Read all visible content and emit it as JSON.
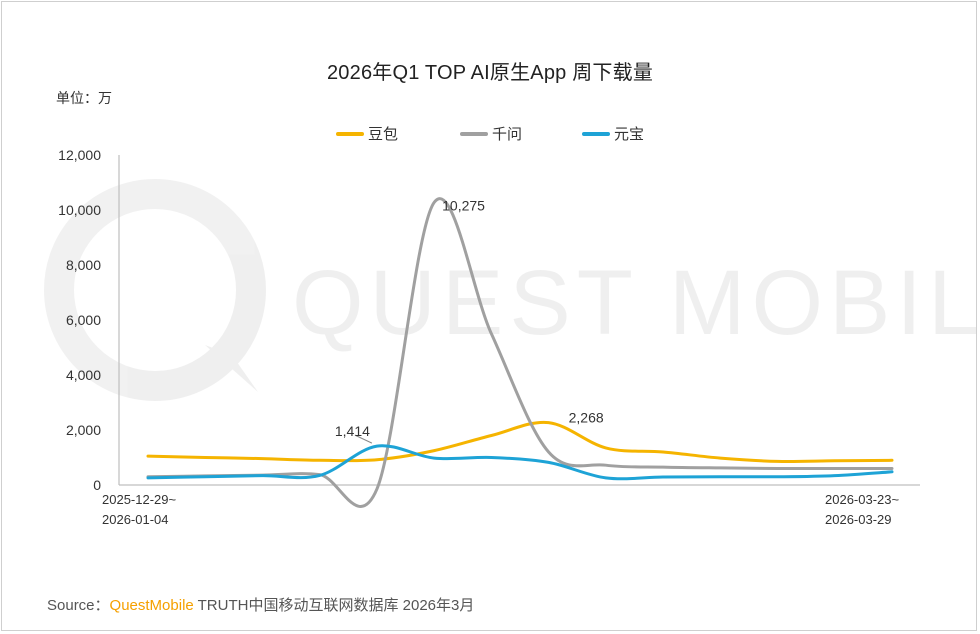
{
  "chart_data": {
    "type": "line",
    "title": "2026年Q1 TOP AI原生App 周下载量",
    "unit_label": "单位：万",
    "watermark": "QUEST MOBILE",
    "ylim": [
      0,
      12000
    ],
    "y_ticks": [
      "0",
      "2,000",
      "4,000",
      "6,000",
      "8,000",
      "10,000",
      "12,000"
    ],
    "y_tick_values": [
      0,
      2000,
      4000,
      6000,
      8000,
      10000,
      12000
    ],
    "x_first_label": [
      "2025-12-29~",
      "2026-01-04"
    ],
    "x_last_label": [
      "2026-03-23~",
      "2026-03-29"
    ],
    "x": [
      0,
      1,
      2,
      3,
      4,
      5,
      6,
      7,
      8,
      9,
      10,
      11,
      12,
      13
    ],
    "series": [
      {
        "name": "豆包",
        "color": "#f5b400",
        "values": [
          1050,
          1000,
          960,
          900,
          920,
          1250,
          1800,
          2268,
          1350,
          1200,
          980,
          860,
          880,
          900
        ]
      },
      {
        "name": "千问",
        "color": "#a0a0a0",
        "values": [
          300,
          330,
          360,
          380,
          -150,
          10275,
          5500,
          1200,
          720,
          650,
          620,
          600,
          600,
          600
        ]
      },
      {
        "name": "元宝",
        "color": "#1ea3d6",
        "values": [
          260,
          300,
          340,
          350,
          1414,
          980,
          1000,
          820,
          260,
          290,
          300,
          300,
          340,
          480
        ]
      }
    ],
    "annotations": [
      {
        "series": 1,
        "index": 5,
        "text": "10,275"
      },
      {
        "series": 2,
        "index": 4,
        "text": "1,414"
      },
      {
        "series": 0,
        "index": 7,
        "text": "2,268"
      }
    ]
  },
  "source": {
    "prefix": "Source：",
    "brand": "QuestMobile",
    "rest": " TRUTH中国移动互联网数据库 2026年3月"
  }
}
